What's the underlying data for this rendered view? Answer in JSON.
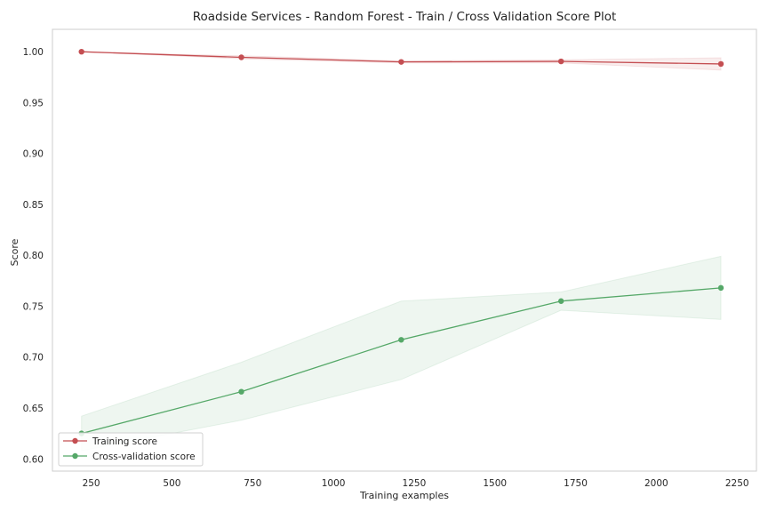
{
  "chart_data": {
    "type": "line",
    "title": "Roadside Services - Random Forest - Train / Cross Validation Score Plot",
    "xlabel": "Training examples",
    "ylabel": "Score",
    "xlim": [
      130,
      2310
    ],
    "ylim": [
      0.588,
      1.022
    ],
    "xticks": [
      250,
      500,
      750,
      1000,
      1250,
      1500,
      1750,
      2000,
      2250
    ],
    "yticks": [
      "0.60",
      "0.65",
      "0.70",
      "0.75",
      "0.80",
      "0.85",
      "0.90",
      "0.95",
      "1.00"
    ],
    "grid": false,
    "legend_position": "lower-left",
    "x": [
      220,
      715,
      1210,
      1705,
      2200
    ],
    "series": [
      {
        "name": "Training score",
        "color": "#c44e52",
        "values": [
          1.0,
          0.9945,
          0.99,
          0.9905,
          0.988
        ],
        "band_lower": [
          1.0,
          0.993,
          0.989,
          0.989,
          0.982
        ],
        "band_upper": [
          1.0,
          0.996,
          0.991,
          0.992,
          0.994
        ]
      },
      {
        "name": "Cross-validation score",
        "color": "#55a868",
        "values": [
          0.625,
          0.666,
          0.717,
          0.755,
          0.768
        ],
        "band_lower": [
          0.608,
          0.638,
          0.678,
          0.746,
          0.737
        ],
        "band_upper": [
          0.642,
          0.695,
          0.755,
          0.764,
          0.799
        ]
      }
    ]
  }
}
